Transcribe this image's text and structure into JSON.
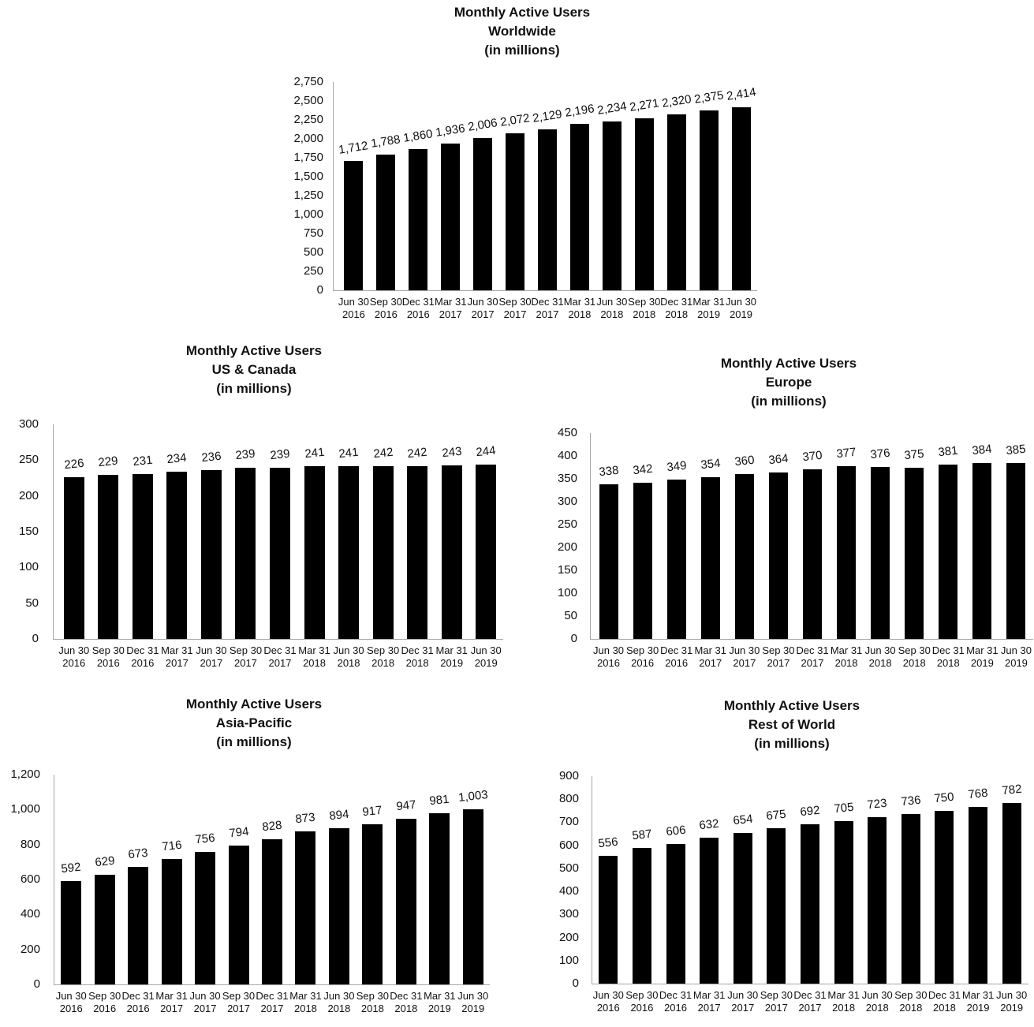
{
  "page": {
    "description": "Facebook Monthly Active Users by region, quarterly bar charts"
  },
  "style": {
    "bar_color": "#000000",
    "axis_color": "#a6a6a6",
    "text_color": "#111111",
    "background": "#ffffff"
  },
  "chart_data": [
    {
      "id": "worldwide",
      "type": "bar",
      "title": "Monthly Active Users",
      "subtitle": "Worldwide",
      "unit_label": "(in millions)",
      "grid": false,
      "legend": "none",
      "categories": [
        "Jun 30\n2016",
        "Sep 30\n2016",
        "Dec 31\n2016",
        "Mar 31\n2017",
        "Jun 30\n2017",
        "Sep 30\n2017",
        "Dec 31\n2017",
        "Mar 31\n2018",
        "Jun 30\n2018",
        "Sep 30\n2018",
        "Dec 31\n2018",
        "Mar 31\n2019",
        "Jun 30\n2019"
      ],
      "values": [
        1712,
        1788,
        1860,
        1936,
        2006,
        2072,
        2129,
        2196,
        2234,
        2271,
        2320,
        2375,
        2414
      ],
      "value_labels": [
        "1,712",
        "1,788",
        "1,860",
        "1,936",
        "2,006",
        "2,072",
        "2,129",
        "2,196",
        "2,234",
        "2,271",
        "2,320",
        "2,375",
        "2,414"
      ],
      "ylim": [
        0,
        2750
      ],
      "ytick_labels": [
        "0",
        "250",
        "500",
        "750",
        "1,000",
        "1,250",
        "1,500",
        "1,750",
        "2,000",
        "2,250",
        "2,500",
        "2,750"
      ]
    },
    {
      "id": "us-canada",
      "type": "bar",
      "title": "Monthly Active Users",
      "subtitle": "US & Canada",
      "unit_label": "(in millions)",
      "grid": false,
      "legend": "none",
      "categories": [
        "Jun 30\n2016",
        "Sep 30\n2016",
        "Dec 31\n2016",
        "Mar 31\n2017",
        "Jun 30\n2017",
        "Sep 30\n2017",
        "Dec 31\n2017",
        "Mar 31\n2018",
        "Jun 30\n2018",
        "Sep 30\n2018",
        "Dec 31\n2018",
        "Mar 31\n2019",
        "Jun 30\n2019"
      ],
      "values": [
        226,
        229,
        231,
        234,
        236,
        239,
        239,
        241,
        241,
        242,
        242,
        243,
        244
      ],
      "value_labels": [
        "226",
        "229",
        "231",
        "234",
        "236",
        "239",
        "239",
        "241",
        "241",
        "242",
        "242",
        "243",
        "244"
      ],
      "ylim": [
        0,
        300
      ],
      "ytick_labels": [
        "0",
        "50",
        "100",
        "150",
        "200",
        "250",
        "300"
      ]
    },
    {
      "id": "europe",
      "type": "bar",
      "title": "Monthly Active Users",
      "subtitle": "Europe",
      "unit_label": "(in millions)",
      "grid": false,
      "legend": "none",
      "categories": [
        "Jun 30\n2016",
        "Sep 30\n2016",
        "Dec 31\n2016",
        "Mar 31\n2017",
        "Jun 30\n2017",
        "Sep 30\n2017",
        "Dec 31\n2017",
        "Mar 31\n2018",
        "Jun 30\n2018",
        "Sep 30\n2018",
        "Dec 31\n2018",
        "Mar 31\n2019",
        "Jun 30\n2019"
      ],
      "values": [
        338,
        342,
        349,
        354,
        360,
        364,
        370,
        377,
        376,
        375,
        381,
        384,
        385
      ],
      "value_labels": [
        "338",
        "342",
        "349",
        "354",
        "360",
        "364",
        "370",
        "377",
        "376",
        "375",
        "381",
        "384",
        "385"
      ],
      "ylim": [
        0,
        450
      ],
      "ytick_labels": [
        "0",
        "50",
        "100",
        "150",
        "200",
        "250",
        "300",
        "350",
        "400",
        "450"
      ]
    },
    {
      "id": "asia-pacific",
      "type": "bar",
      "title": "Monthly Active Users",
      "subtitle": "Asia-Pacific",
      "unit_label": "(in millions)",
      "grid": false,
      "legend": "none",
      "categories": [
        "Jun 30\n2016",
        "Sep 30\n2016",
        "Dec 31\n2016",
        "Mar 31\n2017",
        "Jun 30\n2017",
        "Sep 30\n2017",
        "Dec 31\n2017",
        "Mar 31\n2018",
        "Jun 30\n2018",
        "Sep 30\n2018",
        "Dec 31\n2018",
        "Mar 31\n2019",
        "Jun 30\n2019"
      ],
      "values": [
        592,
        629,
        673,
        716,
        756,
        794,
        828,
        873,
        894,
        917,
        947,
        981,
        1003
      ],
      "value_labels": [
        "592",
        "629",
        "673",
        "716",
        "756",
        "794",
        "828",
        "873",
        "894",
        "917",
        "947",
        "981",
        "1,003"
      ],
      "ylim": [
        0,
        1200
      ],
      "ytick_labels": [
        "0",
        "200",
        "400",
        "600",
        "800",
        "1,000",
        "1,200"
      ]
    },
    {
      "id": "rest-of-world",
      "type": "bar",
      "title": "Monthly Active Users",
      "subtitle": "Rest of World",
      "unit_label": "(in millions)",
      "grid": false,
      "legend": "none",
      "categories": [
        "Jun 30\n2016",
        "Sep 30\n2016",
        "Dec 31\n2016",
        "Mar 31\n2017",
        "Jun 30\n2017",
        "Sep 30\n2017",
        "Dec 31\n2017",
        "Mar 31\n2018",
        "Jun 30\n2018",
        "Sep 30\n2018",
        "Dec 31\n2018",
        "Mar 31\n2019",
        "Jun 30\n2019"
      ],
      "values": [
        556,
        587,
        606,
        632,
        654,
        675,
        692,
        705,
        723,
        736,
        750,
        768,
        782
      ],
      "value_labels": [
        "556",
        "587",
        "606",
        "632",
        "654",
        "675",
        "692",
        "705",
        "723",
        "736",
        "750",
        "768",
        "782"
      ],
      "ylim": [
        0,
        900
      ],
      "ytick_labels": [
        "0",
        "100",
        "200",
        "300",
        "400",
        "500",
        "600",
        "700",
        "800",
        "900"
      ]
    }
  ]
}
